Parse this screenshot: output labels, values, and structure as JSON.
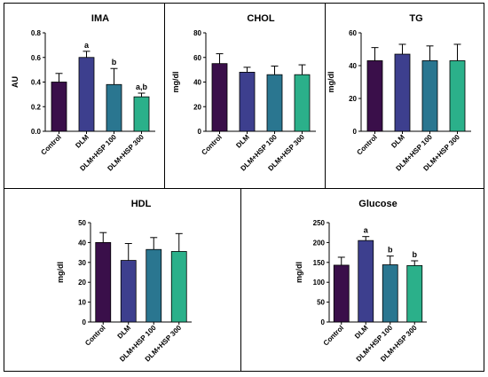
{
  "figure": {
    "colors": {
      "Control": "#3a0f4a",
      "DLM": "#3d3f8e",
      "DLM+HSP 100": "#2a7690",
      "DLM+HSP 300": "#2bb08a"
    }
  },
  "chart_data": [
    {
      "id": "ima",
      "type": "bar",
      "title": "IMA",
      "ylabel": "AU",
      "ylim": [
        0,
        0.8
      ],
      "yticks": [
        "0.0",
        "0.2",
        "0.4",
        "0.6",
        "0.8"
      ],
      "categories": [
        "Control",
        "DLM",
        "DLM+HSP 100",
        "DLM+HSP 300"
      ],
      "values": [
        0.4,
        0.6,
        0.38,
        0.28
      ],
      "errors": [
        0.07,
        0.05,
        0.13,
        0.03
      ],
      "annotations": [
        "",
        "a",
        "b",
        "a,b"
      ]
    },
    {
      "id": "chol",
      "type": "bar",
      "title": "CHOL",
      "ylabel": "mg/dl",
      "ylim": [
        0,
        80
      ],
      "yticks": [
        "0",
        "20",
        "40",
        "60",
        "80"
      ],
      "categories": [
        "Control",
        "DLM",
        "DLM+HSP 100",
        "DLM+HSP 300"
      ],
      "values": [
        55,
        48,
        46,
        46
      ],
      "errors": [
        8,
        4,
        7,
        8
      ],
      "annotations": [
        "",
        "",
        "",
        ""
      ]
    },
    {
      "id": "tg",
      "type": "bar",
      "title": "TG",
      "ylabel": "mg/dl",
      "ylim": [
        0,
        60
      ],
      "yticks": [
        "0",
        "20",
        "40",
        "60"
      ],
      "categories": [
        "Control",
        "DLM",
        "DLM+HSP 100",
        "DLM+HSP 300"
      ],
      "values": [
        43,
        47,
        43,
        43
      ],
      "errors": [
        8,
        6,
        9,
        10
      ],
      "annotations": [
        "",
        "",
        "",
        ""
      ]
    },
    {
      "id": "hdl",
      "type": "bar",
      "title": "HDL",
      "ylabel": "mg/dl",
      "ylim": [
        0,
        50
      ],
      "yticks": [
        "0",
        "10",
        "20",
        "30",
        "40",
        "50"
      ],
      "categories": [
        "Control",
        "DLM",
        "DLM+HSP 100",
        "DLM+HSP 300"
      ],
      "values": [
        40,
        31,
        36.5,
        35.5
      ],
      "errors": [
        5,
        8.5,
        6,
        9
      ],
      "annotations": [
        "",
        "",
        "",
        ""
      ]
    },
    {
      "id": "glucose",
      "type": "bar",
      "title": "Glucose",
      "ylabel": "mg/dl",
      "ylim": [
        0,
        250
      ],
      "yticks": [
        "0",
        "50",
        "100",
        "150",
        "200",
        "250"
      ],
      "categories": [
        "Control",
        "DLM",
        "DLM+HSP 100",
        "DLM+HSP 300"
      ],
      "values": [
        143,
        205,
        144,
        142
      ],
      "errors": [
        20,
        10,
        22,
        12
      ],
      "annotations": [
        "",
        "a",
        "b",
        "b"
      ]
    }
  ]
}
